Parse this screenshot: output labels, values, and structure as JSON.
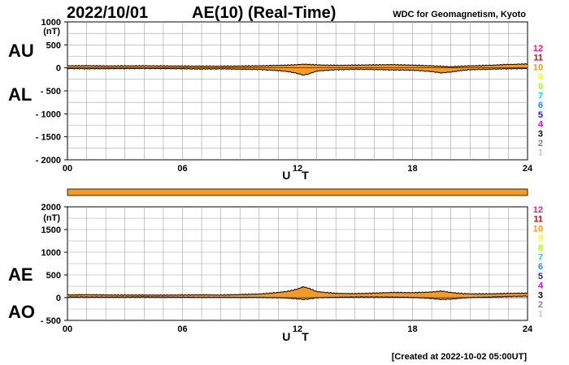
{
  "header": {
    "date": "2022/10/01",
    "title": "AE(10) (Real-Time)",
    "source": "WDC for Geomagnetism, Kyoto"
  },
  "footer": {
    "created": "[Created at 2022-10-02 05:00UT]"
  },
  "legend": {
    "items": [
      {
        "label": "12",
        "color": "#ff1493"
      },
      {
        "label": "11",
        "color": "#e00000"
      },
      {
        "label": "10",
        "color": "#ff9900"
      },
      {
        "label": "9",
        "color": "#ffff00"
      },
      {
        "label": "8",
        "color": "#aaff00"
      },
      {
        "label": "7",
        "color": "#00dddd"
      },
      {
        "label": "6",
        "color": "#1e90ff"
      },
      {
        "label": "5",
        "color": "#2020cc"
      },
      {
        "label": "4",
        "color": "#ee00ee"
      },
      {
        "label": "3",
        "color": "#000000"
      },
      {
        "label": "2",
        "color": "#808080"
      },
      {
        "label": "1",
        "color": "#c8c8c8"
      }
    ]
  },
  "colors": {
    "fill": "#f59a23",
    "line": "#000000",
    "grid": "#a0a0a0",
    "station_bar": "#f59a23"
  },
  "chart_data": [
    {
      "type": "area",
      "panel": "AU/AL",
      "labels": [
        "AU",
        "AL"
      ],
      "unit": "(nT)",
      "xlabel": "U T",
      "xlim": [
        0,
        24
      ],
      "x_ticks": [
        {
          "v": 0,
          "label": "00"
        },
        {
          "v": 6,
          "label": "06"
        },
        {
          "v": 12,
          "label": "12"
        },
        {
          "v": 18,
          "label": "18"
        },
        {
          "v": 24,
          "label": "24"
        }
      ],
      "ylim": [
        -2000,
        1000
      ],
      "y_ticks": [
        {
          "v": 1000,
          "label": "1000"
        },
        {
          "v": 500,
          "label": "500"
        },
        {
          "v": 0,
          "label": "0"
        },
        {
          "v": -500,
          "label": "- 500"
        },
        {
          "v": -1000,
          "label": "- 1000"
        },
        {
          "v": -1500,
          "label": "- 1500"
        },
        {
          "v": -2000,
          "label": "- 2000"
        }
      ],
      "grid": true,
      "x": [
        0,
        1,
        2,
        3,
        4,
        5,
        6,
        7,
        8,
        9,
        10,
        11,
        11.5,
        12,
        12.3,
        12.6,
        13,
        14,
        15,
        16,
        17,
        18,
        19,
        19.5,
        20,
        20.5,
        21,
        22,
        23,
        24
      ],
      "series": [
        {
          "name": "AU",
          "values": [
            45,
            48,
            42,
            44,
            46,
            42,
            40,
            38,
            36,
            40,
            45,
            55,
            60,
            70,
            80,
            75,
            65,
            55,
            60,
            65,
            70,
            60,
            45,
            35,
            25,
            35,
            45,
            55,
            75,
            85
          ]
        },
        {
          "name": "AL",
          "values": [
            -15,
            -20,
            -18,
            -15,
            -12,
            -15,
            -20,
            -25,
            -22,
            -30,
            -35,
            -60,
            -80,
            -120,
            -160,
            -130,
            -70,
            -40,
            -30,
            -35,
            -45,
            -50,
            -80,
            -110,
            -90,
            -60,
            -40,
            -30,
            -20,
            -15
          ]
        }
      ]
    },
    {
      "type": "area",
      "panel": "AE/AO",
      "labels": [
        "AE",
        "AO"
      ],
      "unit": "(nT)",
      "xlabel": "U T",
      "xlim": [
        0,
        24
      ],
      "x_ticks": [
        {
          "v": 0,
          "label": "00"
        },
        {
          "v": 6,
          "label": "06"
        },
        {
          "v": 12,
          "label": "12"
        },
        {
          "v": 18,
          "label": "18"
        },
        {
          "v": 24,
          "label": "24"
        }
      ],
      "ylim": [
        -500,
        2000
      ],
      "y_ticks": [
        {
          "v": 2000,
          "label": "2000"
        },
        {
          "v": 1500,
          "label": "1500"
        },
        {
          "v": 1000,
          "label": "1000"
        },
        {
          "v": 500,
          "label": "500"
        },
        {
          "v": 0,
          "label": "0"
        },
        {
          "v": -500,
          "label": "- 500"
        }
      ],
      "grid": true,
      "x": [
        0,
        1,
        2,
        3,
        4,
        5,
        6,
        7,
        8,
        9,
        10,
        11,
        11.5,
        12,
        12.3,
        12.6,
        13,
        14,
        15,
        16,
        17,
        18,
        19,
        19.5,
        20,
        20.5,
        21,
        22,
        23,
        24
      ],
      "series": [
        {
          "name": "AE",
          "values": [
            60,
            68,
            60,
            59,
            58,
            57,
            60,
            63,
            58,
            70,
            80,
            115,
            140,
            190,
            240,
            205,
            135,
            95,
            90,
            100,
            115,
            110,
            125,
            145,
            115,
            95,
            85,
            85,
            95,
            100
          ]
        },
        {
          "name": "AO",
          "values": [
            15,
            14,
            12,
            14,
            17,
            13,
            10,
            6,
            7,
            5,
            5,
            -2,
            -10,
            -25,
            -40,
            -28,
            -2,
            8,
            15,
            15,
            12,
            5,
            -18,
            -38,
            -32,
            -12,
            2,
            12,
            28,
            35
          ]
        }
      ]
    }
  ]
}
